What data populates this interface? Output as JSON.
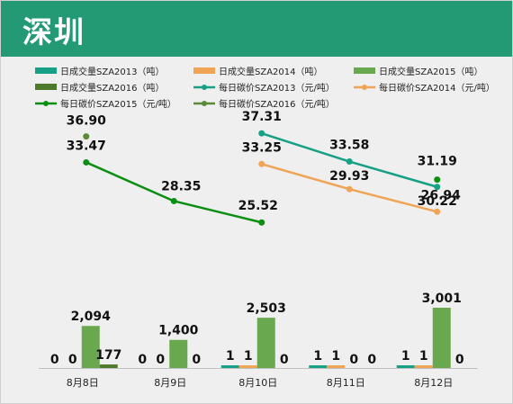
{
  "header": {
    "title": "深圳"
  },
  "chart_data": {
    "type": "bar+line",
    "categories": [
      "8月8日",
      "8月9日",
      "8月10日",
      "8月11日",
      "8月12日"
    ],
    "bar_series": [
      {
        "name": "日成交量SZA2013（吨）",
        "color": "#16a085",
        "values": [
          0,
          0,
          1,
          1,
          1
        ]
      },
      {
        "name": "日成交量SZA2014（吨）",
        "color": "#f0a455",
        "values": [
          0,
          0,
          1,
          1,
          1
        ]
      },
      {
        "name": "日成交量SZA2015（吨）",
        "color": "#6aa84f",
        "values": [
          2094,
          1400,
          2503,
          0,
          3001
        ]
      },
      {
        "name": "日成交量SZA2016（吨）",
        "color": "#4e7a2c",
        "values": [
          177,
          0,
          0,
          0,
          0
        ]
      }
    ],
    "bar_labels": [
      [
        "0",
        "0",
        "1",
        "1",
        "1"
      ],
      [
        "0",
        "0",
        "1",
        "1",
        "1"
      ],
      [
        "2,094",
        "1,400",
        "2,503",
        "0",
        "3,001"
      ],
      [
        "177",
        "0",
        "0",
        "0",
        "0"
      ]
    ],
    "line_series": [
      {
        "name": "每日碳价SZA2013（元/吨）",
        "color": "#16a085",
        "values": [
          null,
          null,
          37.31,
          33.58,
          30.22
        ]
      },
      {
        "name": "每日碳价SZA2014（元/吨）",
        "color": "#f0a455",
        "values": [
          null,
          null,
          33.25,
          29.93,
          26.94
        ]
      },
      {
        "name": "每日碳价SZA2015（元/吨）",
        "color": "#0a8f12",
        "values": [
          33.47,
          28.35,
          25.52,
          null,
          31.19
        ]
      },
      {
        "name": "每日碳价SZA2016（元/吨）",
        "color": "#5b8a3a",
        "values": [
          36.9,
          null,
          null,
          null,
          null
        ]
      }
    ],
    "legend_position": "top",
    "grid": false
  }
}
